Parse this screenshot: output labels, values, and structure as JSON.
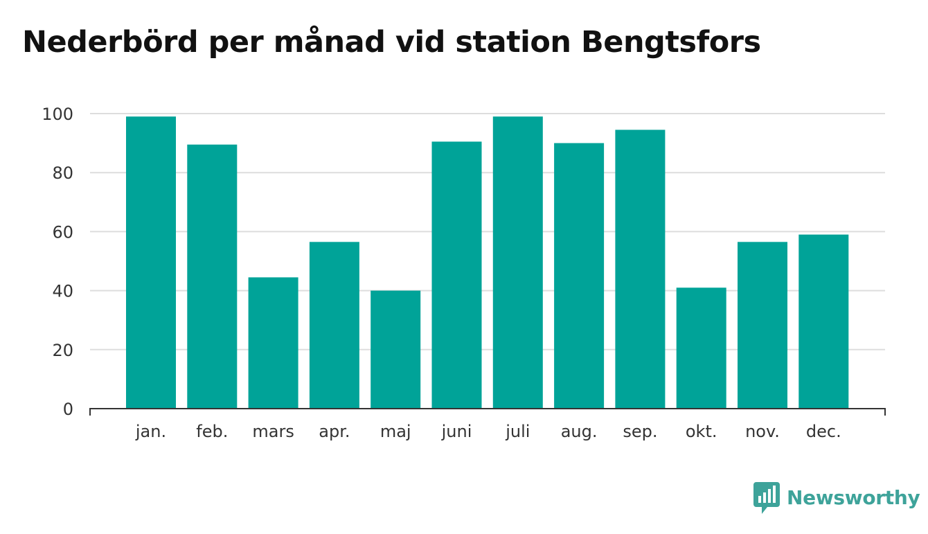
{
  "colors": {
    "bar": "#00a398",
    "grid": "#dddddd",
    "axis": "#333333",
    "brand": "#3ea39a",
    "title": "#111111"
  },
  "brand": {
    "name": "Newsworthy",
    "icon": "bar-chart-speech-bubble-icon"
  },
  "chart_data": {
    "type": "bar",
    "title": "Nederbörd per månad vid station Bengtsfors",
    "xlabel": "",
    "ylabel": "",
    "categories": [
      "jan.",
      "feb.",
      "mars",
      "apr.",
      "maj",
      "juni",
      "juli",
      "aug.",
      "sep.",
      "okt.",
      "nov.",
      "dec."
    ],
    "values": [
      99,
      89.5,
      44.5,
      56.5,
      40,
      90.5,
      99,
      90,
      94.5,
      41,
      56.5,
      59
    ],
    "ylim": [
      0,
      100
    ],
    "yticks": [
      0,
      20,
      40,
      60,
      80,
      100
    ],
    "grid": true,
    "legend": "none"
  }
}
